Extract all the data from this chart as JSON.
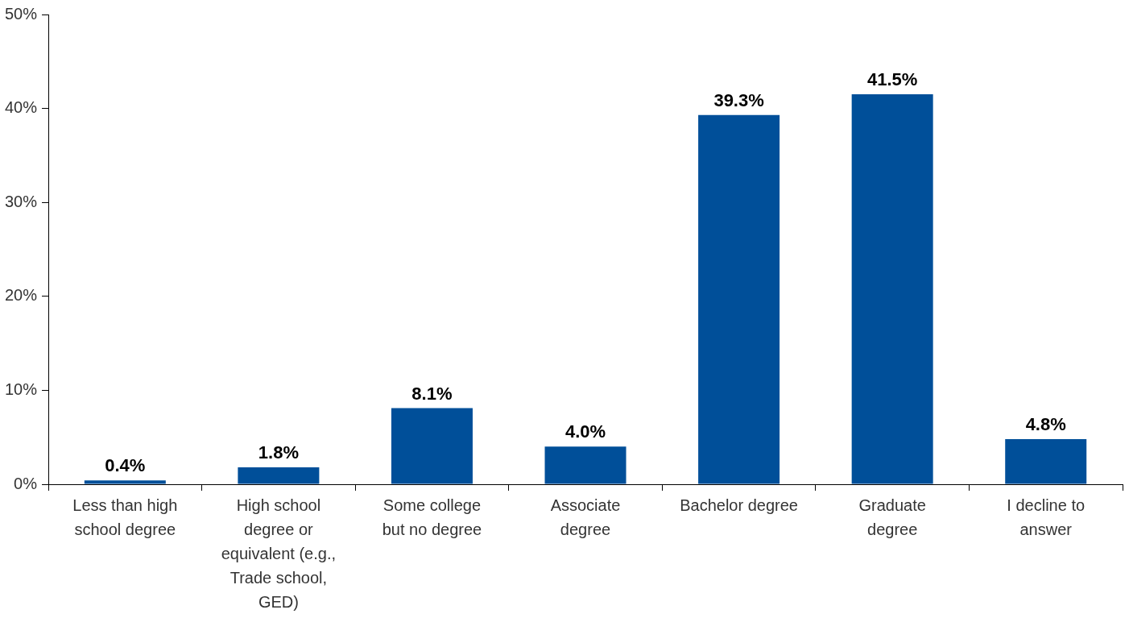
{
  "chart_data": {
    "type": "bar",
    "categories": [
      "Less than high school degree",
      "High school degree or equivalent (e.g., Trade school, GED)",
      "Some college but no degree",
      "Associate degree",
      "Bachelor degree",
      "Graduate degree",
      "I decline to answer"
    ],
    "values": [
      0.4,
      1.8,
      8.1,
      4.0,
      39.3,
      41.5,
      4.8
    ],
    "value_labels": [
      "0.4%",
      "1.8%",
      "8.1%",
      "4.0%",
      "39.3%",
      "41.5%",
      "4.8%"
    ],
    "color": "#004f99",
    "ylim": [
      0,
      50
    ],
    "yticks": [
      {
        "value": 0,
        "label": "0%"
      },
      {
        "value": 10,
        "label": "10%"
      },
      {
        "value": 20,
        "label": "20%"
      },
      {
        "value": 30,
        "label": "30%"
      },
      {
        "value": 40,
        "label": "40%"
      },
      {
        "value": 50,
        "label": "50%"
      }
    ],
    "grid": false,
    "legend": false
  }
}
